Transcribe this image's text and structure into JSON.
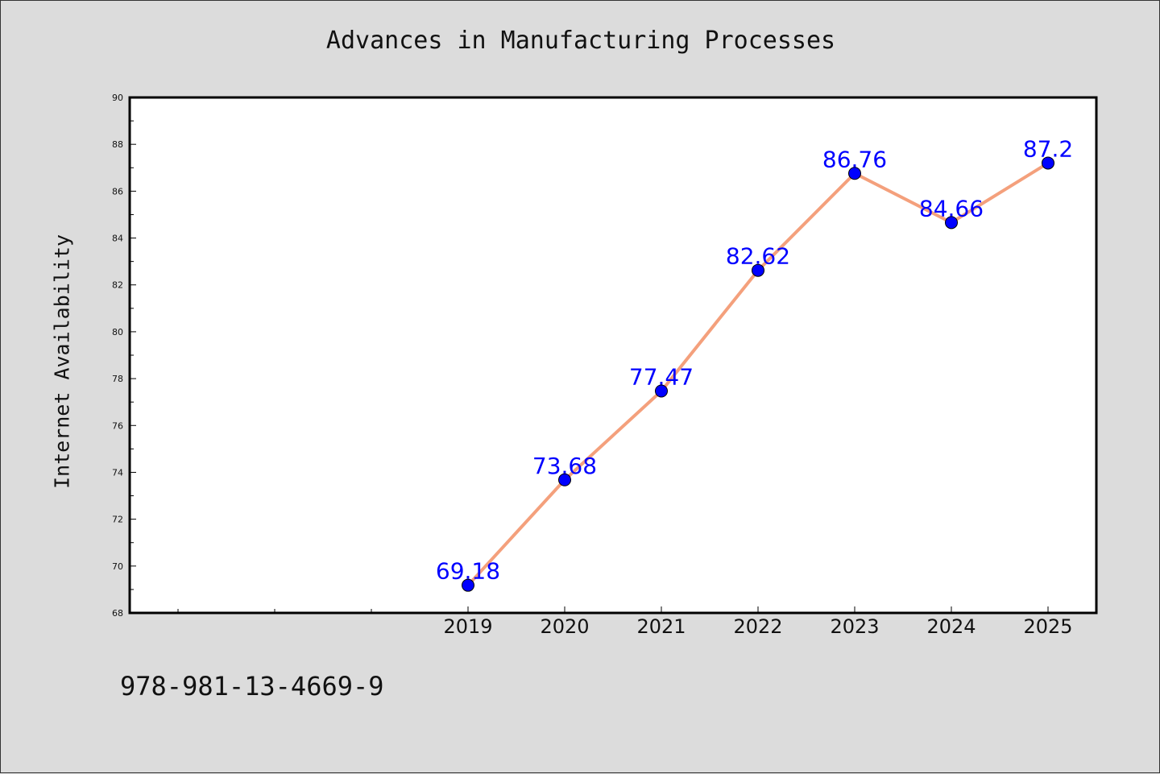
{
  "colors": {
    "background": "#dcdcdc",
    "plot_background": "#ffffff",
    "line": "#f4a07c",
    "marker": "#0000ff",
    "data_label": "#0000ff"
  },
  "footer": {
    "isbn": "978-981-13-4669-9"
  },
  "chart_data": {
    "type": "line",
    "title": "Advances in Manufacturing Processes",
    "xlabel": "",
    "ylabel": "Internet Availability",
    "x": [
      "2019",
      "2020",
      "2021",
      "2022",
      "2023",
      "2024",
      "2025"
    ],
    "series": [
      {
        "values": [
          69.18,
          73.68,
          77.47,
          82.62,
          86.76,
          84.66,
          87.2
        ]
      }
    ],
    "data_labels": [
      "69.18",
      "73.68",
      "77.47",
      "82.62",
      "86.76",
      "84.66",
      "87.2"
    ],
    "ylim": [
      68,
      90
    ],
    "yticks": [
      "68",
      "70",
      "72",
      "74",
      "76",
      "78",
      "80",
      "82",
      "84",
      "86",
      "88",
      "90"
    ],
    "grid": false,
    "legend": "none"
  }
}
